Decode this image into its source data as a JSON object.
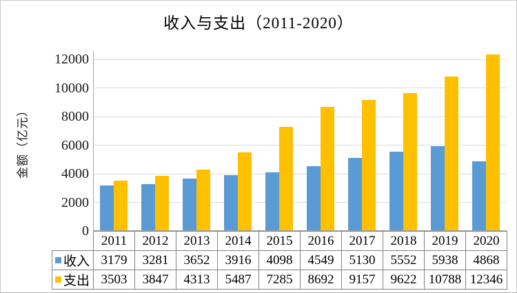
{
  "chart_data": {
    "type": "bar",
    "title": "收入与支出（2011-2020）",
    "ylabel": "金额（亿元）",
    "xlabel": "",
    "categories": [
      "2011",
      "2012",
      "2013",
      "2014",
      "2015",
      "2016",
      "2017",
      "2018",
      "2019",
      "2020"
    ],
    "series": [
      {
        "id": "income",
        "name": "收入",
        "color": "#5B9BD5",
        "values": [
          3179,
          3281,
          3652,
          3916,
          4098,
          4549,
          5130,
          5552,
          5938,
          4868
        ]
      },
      {
        "id": "expense",
        "name": "支出",
        "color": "#FFC000",
        "values": [
          3503,
          3847,
          4313,
          5487,
          7285,
          8692,
          9157,
          9622,
          10788,
          12346
        ]
      }
    ],
    "ylim": [
      0,
      12000
    ],
    "yticks": [
      0,
      2000,
      4000,
      6000,
      8000,
      10000,
      12000
    ],
    "grid": true,
    "legend_position": "data-table-left"
  },
  "colors": {
    "income": "#5B9BD5",
    "expense": "#FFC000",
    "gridline": "#dcdcdc",
    "axis_line": "#a6a6a6",
    "table_border": "#808080",
    "text": "#000000",
    "background": "#ffffff"
  }
}
